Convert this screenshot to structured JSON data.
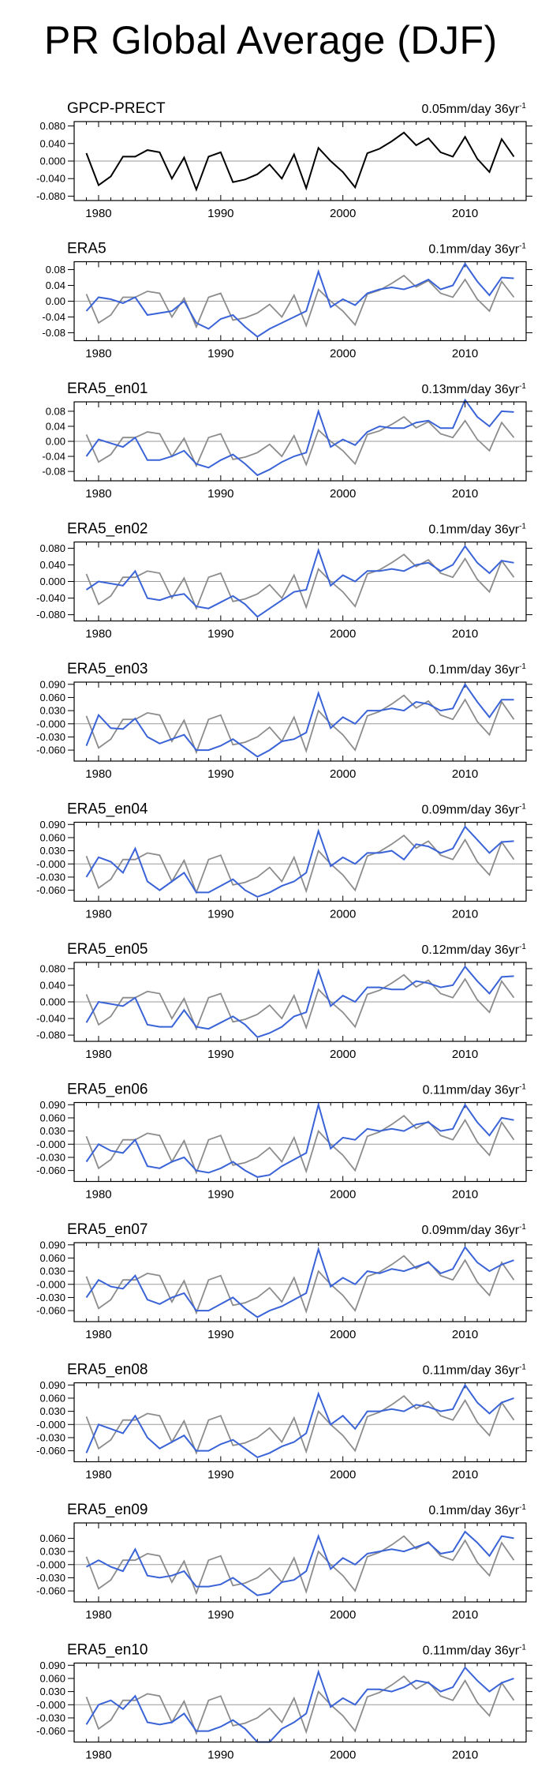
{
  "page_title": "PR Global Average (DJF)",
  "colors": {
    "reference": "#000000",
    "reference_overlay": "#8c8c8c",
    "model": "#3a63d8"
  },
  "chart_data": {
    "type": "line",
    "x_start": 1979,
    "x_end": 2014,
    "xlim": [
      1978,
      2015
    ],
    "xticks": [
      1980,
      1990,
      2000,
      2010
    ],
    "reference": {
      "name": "GPCP-PRECT",
      "rate_value": "0.05mm/day 36yr",
      "rate_exp": "-1",
      "ylim": [
        -0.09,
        0.09
      ],
      "yticks": [
        0.08,
        0.04,
        0.0,
        -0.04,
        -0.08
      ],
      "ytick_labels": [
        "0.080",
        "0.040",
        "0.000",
        "-0.040",
        "-0.080"
      ],
      "values": [
        0.018,
        -0.055,
        -0.035,
        0.01,
        0.01,
        0.025,
        0.02,
        -0.04,
        0.008,
        -0.065,
        0.01,
        0.02,
        -0.048,
        -0.042,
        -0.03,
        -0.008,
        -0.04,
        0.015,
        -0.062,
        0.03,
        0.0,
        -0.025,
        -0.06,
        0.018,
        0.028,
        0.045,
        0.065,
        0.036,
        0.052,
        0.02,
        0.01,
        0.055,
        0.005,
        -0.025,
        0.05,
        0.01
      ]
    },
    "panels": [
      {
        "name": "ERA5",
        "rate_value": "0.1mm/day 36yr",
        "rate_exp": "-1",
        "ylim": [
          -0.1,
          0.1
        ],
        "yticks": [
          0.08,
          0.04,
          0.0,
          -0.04,
          -0.08
        ],
        "ytick_labels": [
          "0.08",
          "0.04",
          "0.00",
          "-0.04",
          "-0.08"
        ],
        "values": [
          -0.025,
          0.01,
          0.005,
          -0.005,
          0.01,
          -0.035,
          -0.03,
          -0.025,
          0.0,
          -0.055,
          -0.07,
          -0.045,
          -0.035,
          -0.065,
          -0.09,
          -0.07,
          -0.055,
          -0.04,
          -0.025,
          0.075,
          -0.015,
          0.005,
          -0.01,
          0.02,
          0.03,
          0.035,
          0.03,
          0.04,
          0.055,
          0.03,
          0.04,
          0.095,
          0.05,
          0.015,
          0.06,
          0.058
        ]
      },
      {
        "name": "ERA5_en01",
        "rate_value": "0.13mm/day 36yr",
        "rate_exp": "-1",
        "ylim": [
          -0.105,
          0.105
        ],
        "yticks": [
          0.08,
          0.04,
          0.0,
          -0.04,
          -0.08
        ],
        "ytick_labels": [
          "0.08",
          "0.04",
          "0.00",
          "-0.04",
          "-0.08"
        ],
        "values": [
          -0.04,
          0.005,
          -0.005,
          -0.015,
          0.01,
          -0.05,
          -0.05,
          -0.04,
          -0.025,
          -0.06,
          -0.07,
          -0.05,
          -0.035,
          -0.06,
          -0.09,
          -0.075,
          -0.055,
          -0.04,
          -0.03,
          0.08,
          -0.015,
          0.005,
          -0.01,
          0.025,
          0.04,
          0.035,
          0.035,
          0.05,
          0.055,
          0.035,
          0.035,
          0.11,
          0.065,
          0.04,
          0.08,
          0.078
        ]
      },
      {
        "name": "ERA5_en02",
        "rate_value": "0.1mm/day 36yr",
        "rate_exp": "-1",
        "ylim": [
          -0.095,
          0.095
        ],
        "yticks": [
          0.08,
          0.04,
          0.0,
          -0.04,
          -0.08
        ],
        "ytick_labels": [
          "0.080",
          "0.040",
          "0.000",
          "-0.040",
          "-0.080"
        ],
        "values": [
          -0.02,
          0.0,
          -0.005,
          -0.01,
          0.025,
          -0.04,
          -0.045,
          -0.035,
          -0.03,
          -0.06,
          -0.065,
          -0.05,
          -0.035,
          -0.055,
          -0.085,
          -0.065,
          -0.045,
          -0.025,
          -0.02,
          0.075,
          -0.01,
          0.015,
          0.0,
          0.025,
          0.025,
          0.03,
          0.025,
          0.04,
          0.045,
          0.025,
          0.04,
          0.085,
          0.045,
          0.02,
          0.05,
          0.045
        ]
      },
      {
        "name": "ERA5_en03",
        "rate_value": "0.1mm/day 36yr",
        "rate_exp": "-1",
        "ylim": [
          -0.085,
          0.095
        ],
        "yticks": [
          0.09,
          0.06,
          0.03,
          0.0,
          -0.03,
          -0.06
        ],
        "ytick_labels": [
          "0.090",
          "0.060",
          "0.030",
          "-0.000",
          "-0.030",
          "-0.060"
        ],
        "values": [
          -0.05,
          0.02,
          -0.01,
          -0.012,
          0.012,
          -0.03,
          -0.045,
          -0.035,
          -0.025,
          -0.06,
          -0.06,
          -0.05,
          -0.035,
          -0.055,
          -0.075,
          -0.06,
          -0.04,
          -0.035,
          -0.02,
          0.07,
          -0.01,
          0.015,
          0.0,
          0.03,
          0.03,
          0.035,
          0.03,
          0.05,
          0.045,
          0.03,
          0.035,
          0.09,
          0.05,
          0.015,
          0.055,
          0.055
        ]
      },
      {
        "name": "ERA5_en04",
        "rate_value": "0.09mm/day 36yr",
        "rate_exp": "-1",
        "ylim": [
          -0.085,
          0.095
        ],
        "yticks": [
          0.09,
          0.06,
          0.03,
          0.0,
          -0.03,
          -0.06
        ],
        "ytick_labels": [
          "0.090",
          "0.060",
          "0.030",
          "-0.000",
          "-0.030",
          "-0.060"
        ],
        "values": [
          -0.03,
          0.015,
          0.005,
          -0.02,
          0.035,
          -0.04,
          -0.06,
          -0.04,
          -0.02,
          -0.065,
          -0.065,
          -0.05,
          -0.035,
          -0.06,
          -0.075,
          -0.065,
          -0.05,
          -0.04,
          -0.02,
          0.075,
          -0.005,
          0.015,
          0.0,
          0.025,
          0.025,
          0.03,
          0.01,
          0.045,
          0.04,
          0.025,
          0.035,
          0.085,
          0.055,
          0.025,
          0.05,
          0.052
        ]
      },
      {
        "name": "ERA5_en05",
        "rate_value": "0.12mm/day 36yr",
        "rate_exp": "-1",
        "ylim": [
          -0.095,
          0.095
        ],
        "yticks": [
          0.08,
          0.04,
          0.0,
          -0.04,
          -0.08
        ],
        "ytick_labels": [
          "0.080",
          "0.040",
          "0.000",
          "-0.040",
          "-0.080"
        ],
        "values": [
          -0.05,
          0.0,
          -0.005,
          -0.01,
          0.01,
          -0.055,
          -0.06,
          -0.06,
          -0.02,
          -0.06,
          -0.065,
          -0.05,
          -0.035,
          -0.055,
          -0.085,
          -0.075,
          -0.06,
          -0.035,
          -0.025,
          0.075,
          -0.01,
          0.015,
          0.0,
          0.035,
          0.035,
          0.03,
          0.03,
          0.05,
          0.045,
          0.035,
          0.04,
          0.085,
          0.05,
          0.02,
          0.06,
          0.062
        ]
      },
      {
        "name": "ERA5_en06",
        "rate_value": "0.11mm/day 36yr",
        "rate_exp": "-1",
        "ylim": [
          -0.085,
          0.095
        ],
        "yticks": [
          0.09,
          0.06,
          0.03,
          0.0,
          -0.03,
          -0.06
        ],
        "ytick_labels": [
          "0.090",
          "0.060",
          "0.030",
          "-0.000",
          "-0.030",
          "-0.060"
        ],
        "values": [
          -0.04,
          0.0,
          -0.015,
          -0.02,
          0.01,
          -0.05,
          -0.055,
          -0.04,
          -0.03,
          -0.06,
          -0.065,
          -0.055,
          -0.04,
          -0.06,
          -0.075,
          -0.07,
          -0.05,
          -0.035,
          -0.02,
          0.09,
          -0.01,
          0.015,
          0.01,
          0.035,
          0.03,
          0.035,
          0.03,
          0.045,
          0.05,
          0.03,
          0.035,
          0.09,
          0.05,
          0.02,
          0.06,
          0.055
        ]
      },
      {
        "name": "ERA5_en07",
        "rate_value": "0.09mm/day 36yr",
        "rate_exp": "-1",
        "ylim": [
          -0.085,
          0.095
        ],
        "yticks": [
          0.09,
          0.06,
          0.03,
          0.0,
          -0.03,
          -0.06
        ],
        "ytick_labels": [
          "0.090",
          "0.060",
          "0.030",
          "-0.000",
          "-0.030",
          "-0.060"
        ],
        "values": [
          -0.03,
          0.01,
          -0.005,
          -0.01,
          0.02,
          -0.035,
          -0.045,
          -0.03,
          -0.02,
          -0.06,
          -0.06,
          -0.045,
          -0.03,
          -0.055,
          -0.075,
          -0.06,
          -0.05,
          -0.035,
          -0.02,
          0.08,
          -0.005,
          0.015,
          0.0,
          0.03,
          0.025,
          0.035,
          0.03,
          0.04,
          0.05,
          0.025,
          0.035,
          0.085,
          0.05,
          0.03,
          0.045,
          0.055
        ]
      },
      {
        "name": "ERA5_en08",
        "rate_value": "0.11mm/day 36yr",
        "rate_exp": "-1",
        "ylim": [
          -0.085,
          0.095
        ],
        "yticks": [
          0.09,
          0.06,
          0.03,
          0.0,
          -0.03,
          -0.06
        ],
        "ytick_labels": [
          "0.090",
          "0.060",
          "0.030",
          "-0.000",
          "-0.030",
          "-0.060"
        ],
        "values": [
          -0.065,
          0.0,
          -0.01,
          -0.02,
          0.02,
          -0.03,
          -0.055,
          -0.04,
          -0.025,
          -0.06,
          -0.06,
          -0.045,
          -0.035,
          -0.055,
          -0.075,
          -0.065,
          -0.05,
          -0.04,
          -0.02,
          0.07,
          0.0,
          0.02,
          -0.01,
          0.03,
          0.03,
          0.035,
          0.03,
          0.045,
          0.04,
          0.03,
          0.035,
          0.09,
          0.05,
          0.025,
          0.05,
          0.06
        ]
      },
      {
        "name": "ERA5_en09",
        "rate_value": "0.1mm/day 36yr",
        "rate_exp": "-1",
        "ylim": [
          -0.085,
          0.095
        ],
        "yticks": [
          0.06,
          0.03,
          0.0,
          -0.03,
          -0.06
        ],
        "ytick_labels": [
          "0.060",
          "0.030",
          "-0.000",
          "-0.030",
          "-0.060"
        ],
        "values": [
          -0.005,
          0.01,
          -0.005,
          -0.015,
          0.035,
          -0.025,
          -0.03,
          -0.025,
          -0.015,
          -0.05,
          -0.05,
          -0.045,
          -0.03,
          -0.05,
          -0.07,
          -0.065,
          -0.04,
          -0.035,
          -0.015,
          0.065,
          -0.01,
          0.015,
          0.0,
          0.025,
          0.03,
          0.035,
          0.03,
          0.04,
          0.05,
          0.025,
          0.03,
          0.075,
          0.05,
          0.02,
          0.065,
          0.06
        ]
      },
      {
        "name": "ERA5_en10",
        "rate_value": "0.11mm/day 36yr",
        "rate_exp": "-1",
        "ylim": [
          -0.085,
          0.095
        ],
        "yticks": [
          0.09,
          0.06,
          0.03,
          0.0,
          -0.03,
          -0.06
        ],
        "ytick_labels": [
          "0.090",
          "0.060",
          "0.030",
          "-0.000",
          "-0.030",
          "-0.060"
        ],
        "values": [
          -0.045,
          0.0,
          0.01,
          -0.01,
          0.02,
          -0.04,
          -0.045,
          -0.04,
          -0.02,
          -0.06,
          -0.06,
          -0.05,
          -0.035,
          -0.055,
          -0.085,
          -0.085,
          -0.055,
          -0.04,
          -0.02,
          0.075,
          -0.005,
          0.015,
          0.0,
          0.035,
          0.035,
          0.03,
          0.04,
          0.055,
          0.05,
          0.03,
          0.04,
          0.085,
          0.055,
          0.03,
          0.05,
          0.06
        ]
      }
    ]
  }
}
